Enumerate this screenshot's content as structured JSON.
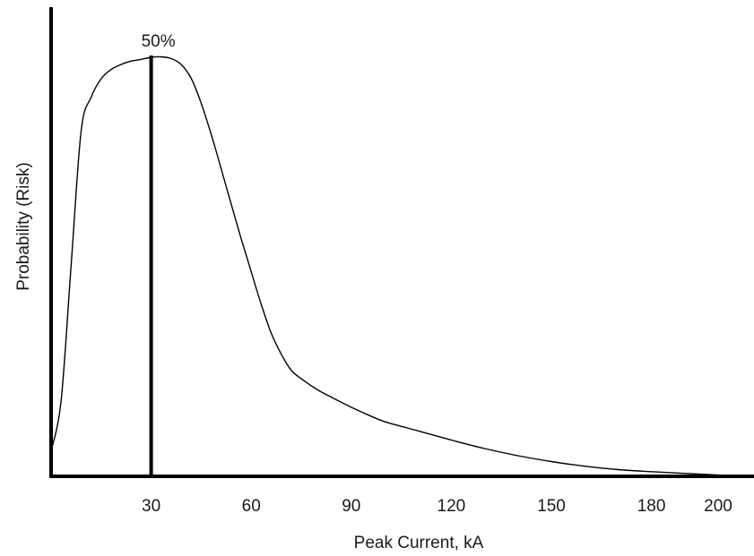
{
  "chart_data": {
    "type": "line",
    "title": "",
    "xlabel": "Peak Current, kA",
    "ylabel": "Probability (Risk)",
    "x_ticks": [
      30,
      60,
      90,
      120,
      150,
      180,
      200
    ],
    "x_tick_labels": [
      "30",
      "60",
      "90",
      "120",
      "150",
      "180",
      "200"
    ],
    "xlim": [
      0,
      220
    ],
    "ylim": [
      0,
      1.08
    ],
    "grid": false,
    "legend": "none",
    "y_ticks_shown": false,
    "series": [
      {
        "x": [
          0,
          3,
          6,
          9,
          12,
          15,
          18,
          21,
          24,
          27,
          30,
          33,
          36,
          39,
          42,
          45,
          48,
          51,
          54,
          57,
          60,
          63,
          66,
          69,
          72,
          75,
          80,
          85,
          90,
          95,
          100,
          110,
          120,
          130,
          140,
          150,
          160,
          170,
          180,
          190,
          200,
          207
        ],
        "y": [
          0.06,
          0.18,
          0.5,
          0.82,
          0.9,
          0.944,
          0.966,
          0.978,
          0.986,
          0.99,
          0.995,
          0.996,
          0.992,
          0.978,
          0.945,
          0.886,
          0.812,
          0.73,
          0.646,
          0.564,
          0.486,
          0.408,
          0.34,
          0.29,
          0.252,
          0.232,
          0.205,
          0.184,
          0.164,
          0.146,
          0.13,
          0.108,
          0.086,
          0.066,
          0.049,
          0.035,
          0.024,
          0.016,
          0.011,
          0.007,
          0.003,
          0.0
        ]
      }
    ],
    "marker": {
      "x": 30,
      "label": "50%"
    }
  }
}
